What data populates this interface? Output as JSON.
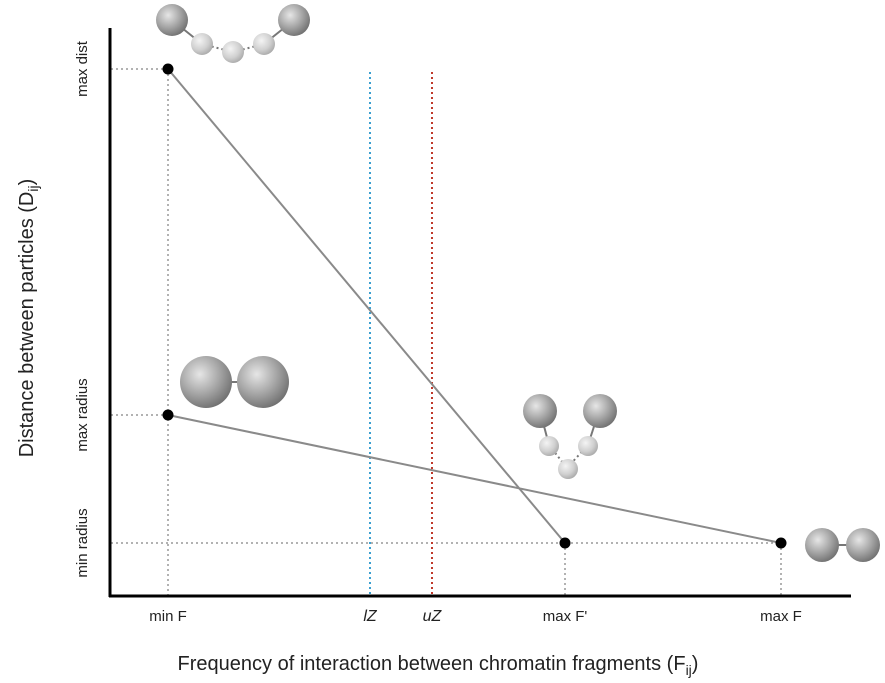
{
  "chart_data": {
    "type": "line",
    "xlabel": "Frequency of interaction between chromatin fragments (F",
    "xlabel_subscript": "ij",
    "xlabel_close": ")",
    "ylabel": "Distance between particles (D",
    "ylabel_subscript": "ij",
    "ylabel_close": ")",
    "x_ticks": [
      "min F",
      "lZ",
      "uZ",
      "max F'",
      "max F"
    ],
    "y_ticks": [
      "min radius",
      "max radius",
      "max dist"
    ],
    "vertical_lines": [
      {
        "label": "lZ",
        "color": "#3a9fd0"
      },
      {
        "label": "uZ",
        "color": "#c0392b"
      }
    ],
    "series": [
      {
        "points": [
          {
            "x": "min F",
            "y": "max dist"
          },
          {
            "x": "max F'",
            "y": "min radius"
          }
        ]
      },
      {
        "points": [
          {
            "x": "min F",
            "y": "max radius"
          },
          {
            "x": "max F",
            "y": "min radius"
          }
        ]
      }
    ],
    "line_color": "#8a8a8a",
    "point_color": "#000000",
    "grid": false
  }
}
